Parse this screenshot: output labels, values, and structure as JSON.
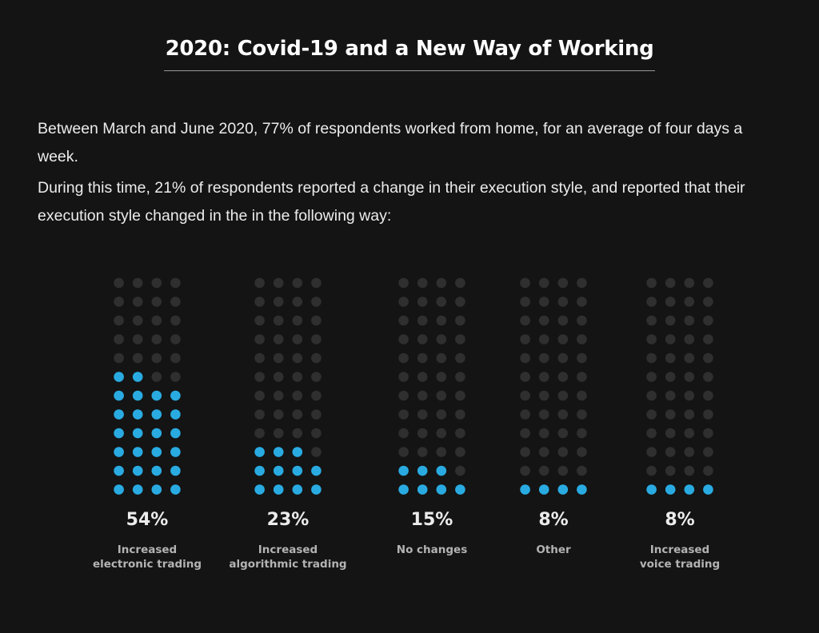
{
  "title": "2020: Covid-19 and a New Way of Working",
  "intro": {
    "paragraph_1": "Between March and June 2020, 77% of respondents worked from home, for an average of four days a week.",
    "paragraph_2": "During this time, 21% of respondents reported a change in their execution style, and reported that their execution style changed in the in the following way:"
  },
  "colors": {
    "background": "#141414",
    "dot_filled": "#29abe2",
    "dot_empty": "#2f2f2f",
    "percent_text": "#ececec",
    "label_text": "#b3b3b3"
  },
  "chart_data": {
    "type": "waffle",
    "grid": {
      "rows": 12,
      "cols": 4,
      "fill": "bottom-up"
    },
    "unit": "%",
    "categories": [
      {
        "label_lines": [
          "Increased",
          "electronic trading"
        ],
        "value": 54,
        "percent_label": "54%"
      },
      {
        "label_lines": [
          "Increased",
          "algorithmic trading"
        ],
        "value": 23,
        "percent_label": "23%"
      },
      {
        "label_lines": [
          "No changes"
        ],
        "value": 15,
        "percent_label": "15%"
      },
      {
        "label_lines": [
          "Other"
        ],
        "value": 8,
        "percent_label": "8%"
      },
      {
        "label_lines": [
          "Increased",
          "voice trading"
        ],
        "value": 8,
        "percent_label": "8%"
      }
    ]
  }
}
